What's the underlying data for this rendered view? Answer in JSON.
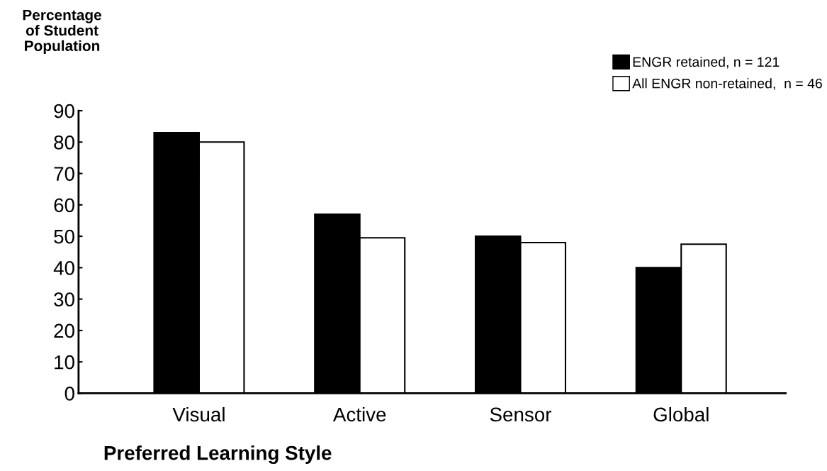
{
  "chart_data": {
    "type": "bar",
    "ylabel": "Percentage\nof Student\nPopulation",
    "xlabel": "Preferred Learning Style",
    "categories": [
      "Visual",
      "Active",
      "Sensor",
      "Global"
    ],
    "series": [
      {
        "name": "ENGR retained, n = 121",
        "color": "#000000",
        "values": [
          83,
          57,
          50,
          40
        ]
      },
      {
        "name": "All ENGR non-retained,  n = 46",
        "color": "#ffffff",
        "values": [
          80,
          49.5,
          48,
          47.5
        ]
      }
    ],
    "ylim": [
      0,
      90
    ],
    "yticks": [
      0,
      10,
      20,
      30,
      40,
      50,
      60,
      70,
      80,
      90
    ],
    "grid": false,
    "legend": "top right"
  }
}
